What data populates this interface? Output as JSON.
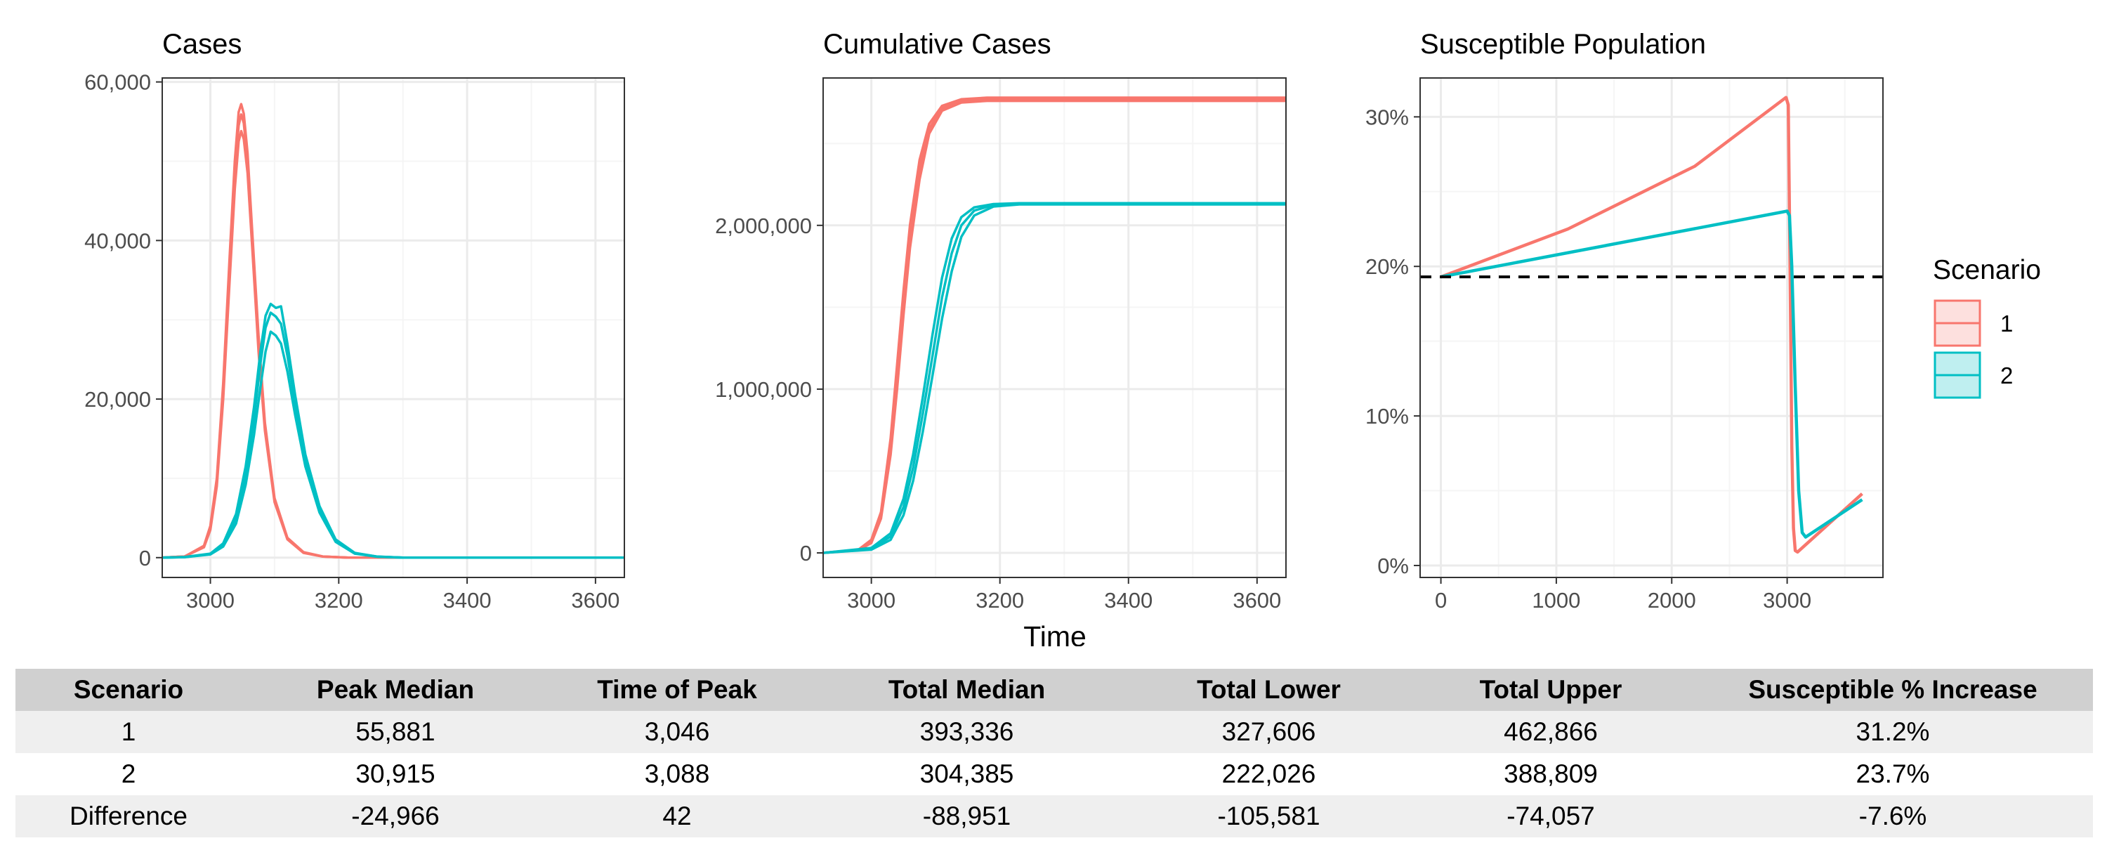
{
  "chart_data": [
    {
      "type": "line",
      "title": "Cases",
      "xlabel": "",
      "ylabel": "",
      "xlim": [
        2925,
        3645
      ],
      "ylim": [
        -2500,
        60500
      ],
      "x_ticks": [
        3000,
        3200,
        3400,
        3600
      ],
      "x_tick_labels": [
        "3000",
        "3200",
        "3400",
        "3600"
      ],
      "y_ticks": [
        0,
        20000,
        40000,
        60000
      ],
      "y_tick_labels": [
        "0",
        "20,000",
        "40,000",
        "60,000"
      ],
      "grid": true,
      "series": [
        {
          "scenario": "1",
          "lines": [
            {
              "x": [
                2925,
                2960,
                2990,
                3000,
                3010,
                3020,
                3030,
                3038,
                3044,
                3048,
                3052,
                3058,
                3066,
                3075,
                3085,
                3100,
                3120,
                3145,
                3175,
                3215,
                3645
              ],
              "y": [
                0,
                150,
                1500,
                4000,
                10000,
                22000,
                38000,
                50000,
                56200,
                57200,
                56000,
                51000,
                40000,
                28000,
                17000,
                7500,
                2500,
                700,
                150,
                0,
                0
              ]
            },
            {
              "x": [
                2925,
                2960,
                2990,
                3000,
                3010,
                3020,
                3030,
                3038,
                3044,
                3048,
                3052,
                3058,
                3066,
                3075,
                3085,
                3100,
                3120,
                3145,
                3175,
                3215,
                3645
              ],
              "y": [
                0,
                150,
                1400,
                3800,
                9500,
                21000,
                36500,
                48500,
                54500,
                55900,
                54800,
                50000,
                39000,
                27000,
                16500,
                7200,
                2400,
                650,
                140,
                0,
                0
              ]
            },
            {
              "x": [
                2925,
                2960,
                2990,
                3000,
                3010,
                3020,
                3030,
                3038,
                3044,
                3048,
                3052,
                3058,
                3066,
                3075,
                3085,
                3100,
                3120,
                3145,
                3175,
                3215,
                3645
              ],
              "y": [
                0,
                150,
                1300,
                3500,
                9000,
                20000,
                35000,
                46500,
                52500,
                53800,
                52800,
                48500,
                38000,
                26000,
                16000,
                7000,
                2300,
                600,
                130,
                0,
                0
              ]
            }
          ]
        },
        {
          "scenario": "2",
          "lines": [
            {
              "x": [
                2925,
                2960,
                3000,
                3020,
                3040,
                3055,
                3068,
                3078,
                3086,
                3094,
                3102,
                3110,
                3120,
                3132,
                3148,
                3170,
                3195,
                3225,
                3260,
                3300,
                3645
              ],
              "y": [
                0,
                80,
                500,
                1800,
                5500,
                11500,
                19000,
                26000,
                30500,
                32000,
                31500,
                31700,
                27000,
                20500,
                13000,
                6500,
                2300,
                600,
                130,
                0,
                0
              ]
            },
            {
              "x": [
                2925,
                2960,
                3000,
                3020,
                3040,
                3055,
                3068,
                3078,
                3086,
                3094,
                3102,
                3110,
                3120,
                3132,
                3148,
                3170,
                3195,
                3225,
                3260,
                3300,
                3645
              ],
              "y": [
                0,
                70,
                450,
                1600,
                5000,
                10500,
                17500,
                24500,
                29000,
                30900,
                30400,
                29500,
                25500,
                19500,
                12300,
                6100,
                2200,
                560,
                120,
                0,
                0
              ]
            },
            {
              "x": [
                2925,
                2960,
                3000,
                3020,
                3040,
                3055,
                3068,
                3078,
                3086,
                3094,
                3102,
                3110,
                3120,
                3132,
                3148,
                3170,
                3195,
                3225,
                3260,
                3300,
                3645
              ],
              "y": [
                0,
                60,
                400,
                1400,
                4300,
                9200,
                15500,
                21500,
                26000,
                28500,
                28000,
                27000,
                23500,
                18000,
                11500,
                5700,
                2000,
                500,
                110,
                0,
                0
              ]
            }
          ]
        }
      ]
    },
    {
      "type": "line",
      "title": "Cumulative Cases",
      "xlabel": "Time",
      "ylabel": "",
      "xlim": [
        2925,
        3645
      ],
      "ylim": [
        -150000,
        2900000
      ],
      "x_ticks": [
        3000,
        3200,
        3400,
        3600
      ],
      "x_tick_labels": [
        "3000",
        "3200",
        "3400",
        "3600"
      ],
      "y_ticks": [
        0,
        1000000,
        2000000
      ],
      "y_tick_labels": [
        "0",
        "1,000,000",
        "2,000,000"
      ],
      "grid": true,
      "series": [
        {
          "scenario": "1",
          "lines": [
            {
              "x": [
                2925,
                2980,
                3000,
                3015,
                3030,
                3040,
                3050,
                3060,
                3075,
                3090,
                3110,
                3140,
                3180,
                3645
              ],
              "y": [
                0,
                20000,
                80000,
                250000,
                700000,
                1150000,
                1600000,
                2000000,
                2400000,
                2620000,
                2730000,
                2770000,
                2780000,
                2780000
              ]
            },
            {
              "x": [
                2925,
                2980,
                3000,
                3015,
                3030,
                3040,
                3050,
                3060,
                3075,
                3090,
                3110,
                3140,
                3180,
                3645
              ],
              "y": [
                0,
                18000,
                70000,
                230000,
                650000,
                1080000,
                1520000,
                1930000,
                2340000,
                2590000,
                2715000,
                2760000,
                2770000,
                2770000
              ]
            },
            {
              "x": [
                2925,
                2980,
                3000,
                3015,
                3030,
                3040,
                3050,
                3060,
                3075,
                3090,
                3110,
                3140,
                3180,
                3645
              ],
              "y": [
                0,
                16000,
                60000,
                210000,
                600000,
                1000000,
                1450000,
                1860000,
                2280000,
                2560000,
                2700000,
                2750000,
                2760000,
                2760000
              ]
            }
          ]
        },
        {
          "scenario": "2",
          "lines": [
            {
              "x": [
                2925,
                3000,
                3030,
                3050,
                3065,
                3080,
                3095,
                3110,
                3125,
                3140,
                3160,
                3190,
                3230,
                3645
              ],
              "y": [
                0,
                30000,
                120000,
                330000,
                600000,
                950000,
                1330000,
                1680000,
                1920000,
                2050000,
                2110000,
                2130000,
                2135000,
                2135000
              ]
            },
            {
              "x": [
                2925,
                3000,
                3030,
                3050,
                3065,
                3080,
                3095,
                3110,
                3125,
                3140,
                3160,
                3190,
                3230,
                3645
              ],
              "y": [
                0,
                25000,
                100000,
                280000,
                520000,
                850000,
                1200000,
                1560000,
                1830000,
                2000000,
                2090000,
                2125000,
                2132000,
                2132000
              ]
            },
            {
              "x": [
                2925,
                3000,
                3030,
                3050,
                3065,
                3080,
                3095,
                3110,
                3125,
                3140,
                3160,
                3190,
                3230,
                3645
              ],
              "y": [
                0,
                20000,
                80000,
                230000,
                440000,
                740000,
                1080000,
                1430000,
                1720000,
                1930000,
                2060000,
                2115000,
                2128000,
                2128000
              ]
            }
          ]
        }
      ]
    },
    {
      "type": "line",
      "title": "Susceptible Population",
      "xlabel": "",
      "ylabel": "",
      "xlim": [
        -180,
        3830
      ],
      "ylim": [
        -0.8,
        32.6
      ],
      "x_ticks": [
        0,
        1000,
        2000,
        3000
      ],
      "x_tick_labels": [
        "0",
        "1000",
        "2000",
        "3000"
      ],
      "y_ticks": [
        0,
        10,
        20,
        30
      ],
      "y_tick_labels": [
        "0%",
        "10%",
        "20%",
        "30%"
      ],
      "grid": true,
      "reference_line": {
        "y": 19.3,
        "style": "dashed"
      },
      "legend": {
        "title": "Scenario",
        "position": "right",
        "entries": [
          "1",
          "2"
        ]
      },
      "series": [
        {
          "scenario": "1",
          "lines": [
            {
              "x": [
                0,
                1100,
                2200,
                2990,
                3010,
                3025,
                3040,
                3055,
                3070,
                3090,
                3650
              ],
              "y": [
                19.3,
                22.5,
                26.7,
                31.3,
                30.8,
                20.0,
                8.0,
                2.5,
                1.0,
                0.9,
                4.8
              ]
            }
          ]
        },
        {
          "scenario": "2",
          "lines": [
            {
              "x": [
                0,
                3000,
                3020,
                3040,
                3070,
                3100,
                3130,
                3160,
                3650
              ],
              "y": [
                19.3,
                23.7,
                23.4,
                20.0,
                12.0,
                5.0,
                2.2,
                1.9,
                4.4
              ]
            }
          ]
        }
      ]
    }
  ],
  "colors": {
    "scenario_1": "#F8766D",
    "scenario_2": "#00BFC4",
    "reference": "#000000",
    "panel_border": "#333333",
    "grid_major": "#EBEBEB",
    "grid_minor": "#F5F5F5",
    "legend_fill_1": "#FDE0DE",
    "legend_fill_2": "#BFEFF0"
  },
  "table": {
    "headers": [
      "Scenario",
      "Peak Median",
      "Time of Peak",
      "Total Median",
      "Total Lower",
      "Total Upper",
      "Susceptible % Increase"
    ],
    "rows": [
      [
        "1",
        "55,881",
        "3,046",
        "393,336",
        "327,606",
        "462,866",
        "31.2%"
      ],
      [
        "2",
        "30,915",
        "3,088",
        "304,385",
        "222,026",
        "388,809",
        "23.7%"
      ],
      [
        "Difference",
        "-24,966",
        "42",
        "-88,951",
        "-105,581",
        "-74,057",
        "-7.6%"
      ]
    ]
  }
}
